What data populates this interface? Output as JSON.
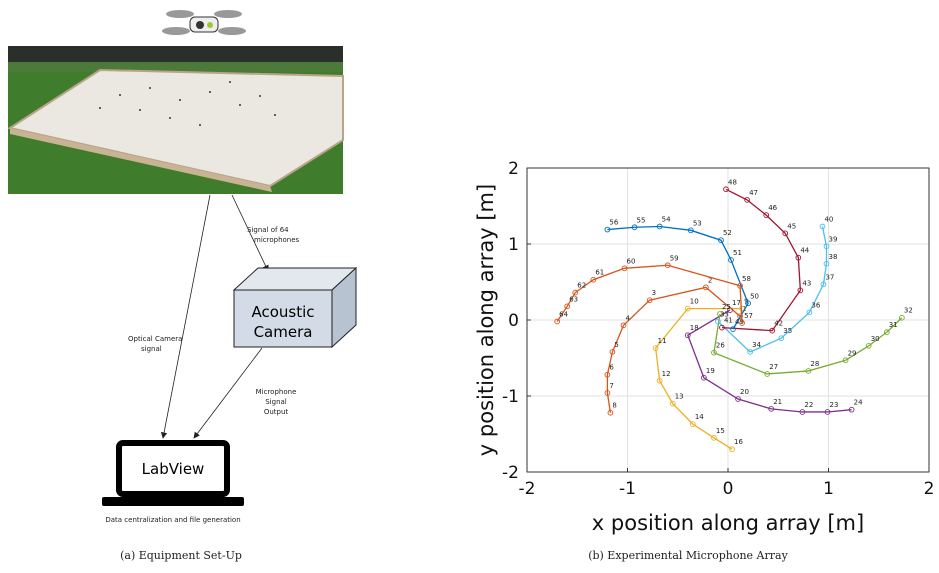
{
  "panel_a": {
    "signal_label": [
      "Signal of 64",
      "microphones"
    ],
    "camera_box": [
      "Acoustic",
      "Camera"
    ],
    "optical_label": [
      "Optical Camera",
      "signal"
    ],
    "mic_output_label": [
      "Microphone",
      "Signal",
      "Output"
    ],
    "laptop_label": "LabView",
    "laptop_caption": "Data centralization and file generation",
    "caption": "(a) Equipment Set-Up"
  },
  "caption_b": "(b) Experimental Microphone Array",
  "chart_data": {
    "type": "line",
    "xlabel": "x position along array [m]",
    "ylabel": "y position along array [m]",
    "xlim": [
      -2,
      2
    ],
    "ylim": [
      -2,
      2
    ],
    "xticks": [
      -2,
      -1,
      0,
      1,
      2
    ],
    "yticks": [
      -2,
      -1,
      0,
      1,
      2
    ],
    "grid": true,
    "series": [
      {
        "color": "#D95319",
        "labels": [
          1,
          2,
          3,
          4,
          5,
          6,
          7,
          8
        ],
        "x": [
          0.12,
          -0.22,
          -0.78,
          -1.04,
          -1.15,
          -1.2,
          -1.2,
          -1.17
        ],
        "values": [
          0.05,
          0.43,
          0.26,
          -0.07,
          -0.42,
          -0.72,
          -0.96,
          -1.22
        ]
      },
      {
        "color": "#EDB120",
        "labels": [
          9,
          10,
          11,
          12,
          13,
          14,
          15,
          16
        ],
        "x": [
          0.14,
          -0.4,
          -0.72,
          -0.68,
          -0.55,
          -0.35,
          -0.14,
          0.04
        ],
        "values": [
          0.15,
          0.15,
          -0.37,
          -0.8,
          -1.1,
          -1.37,
          -1.55,
          -1.7
        ]
      },
      {
        "color": "#7E2F8E",
        "labels": [
          17,
          18,
          19,
          20,
          21,
          22,
          23,
          24
        ],
        "x": [
          0.02,
          -0.4,
          -0.24,
          0.1,
          0.43,
          0.74,
          0.99,
          1.23
        ],
        "values": [
          0.13,
          -0.2,
          -0.76,
          -1.04,
          -1.17,
          -1.21,
          -1.21,
          -1.18
        ]
      },
      {
        "color": "#77AC30",
        "labels": [
          25,
          26,
          27,
          28,
          29,
          30,
          31,
          32
        ],
        "x": [
          -0.08,
          -0.14,
          0.39,
          0.8,
          1.17,
          1.4,
          1.58,
          1.73
        ],
        "values": [
          0.08,
          -0.43,
          -0.71,
          -0.67,
          -0.53,
          -0.34,
          -0.16,
          0.03
        ]
      },
      {
        "color": "#4DBEEE",
        "labels": [
          33,
          34,
          35,
          36,
          37,
          38,
          39,
          40
        ],
        "x": [
          -0.1,
          0.22,
          0.53,
          0.81,
          0.95,
          0.98,
          0.98,
          0.94
        ],
        "values": [
          -0.02,
          -0.42,
          -0.24,
          0.1,
          0.47,
          0.74,
          0.97,
          1.23
        ]
      },
      {
        "color": "#A2142F",
        "labels": [
          41,
          42,
          43,
          44,
          45,
          46,
          47,
          48
        ],
        "x": [
          -0.06,
          0.44,
          0.72,
          0.7,
          0.57,
          0.38,
          0.19,
          -0.02
        ],
        "values": [
          -0.1,
          -0.14,
          0.39,
          0.82,
          1.14,
          1.38,
          1.58,
          1.72
        ]
      },
      {
        "color": "#0072BD",
        "labels": [
          49,
          50,
          51,
          52,
          53,
          54,
          55,
          56
        ],
        "x": [
          0.05,
          0.2,
          0.03,
          -0.07,
          -0.37,
          -0.68,
          -0.93,
          -1.2
        ],
        "values": [
          -0.12,
          0.22,
          0.79,
          1.05,
          1.18,
          1.23,
          1.22,
          1.19
        ]
      },
      {
        "color": "#D95319",
        "labels": [
          57,
          58,
          59,
          60,
          61,
          62,
          63,
          64
        ],
        "x": [
          0.14,
          0.12,
          -0.6,
          -1.03,
          -1.34,
          -1.52,
          -1.6,
          -1.7
        ],
        "values": [
          -0.04,
          0.45,
          0.72,
          0.68,
          0.53,
          0.36,
          0.18,
          -0.02
        ]
      }
    ]
  }
}
